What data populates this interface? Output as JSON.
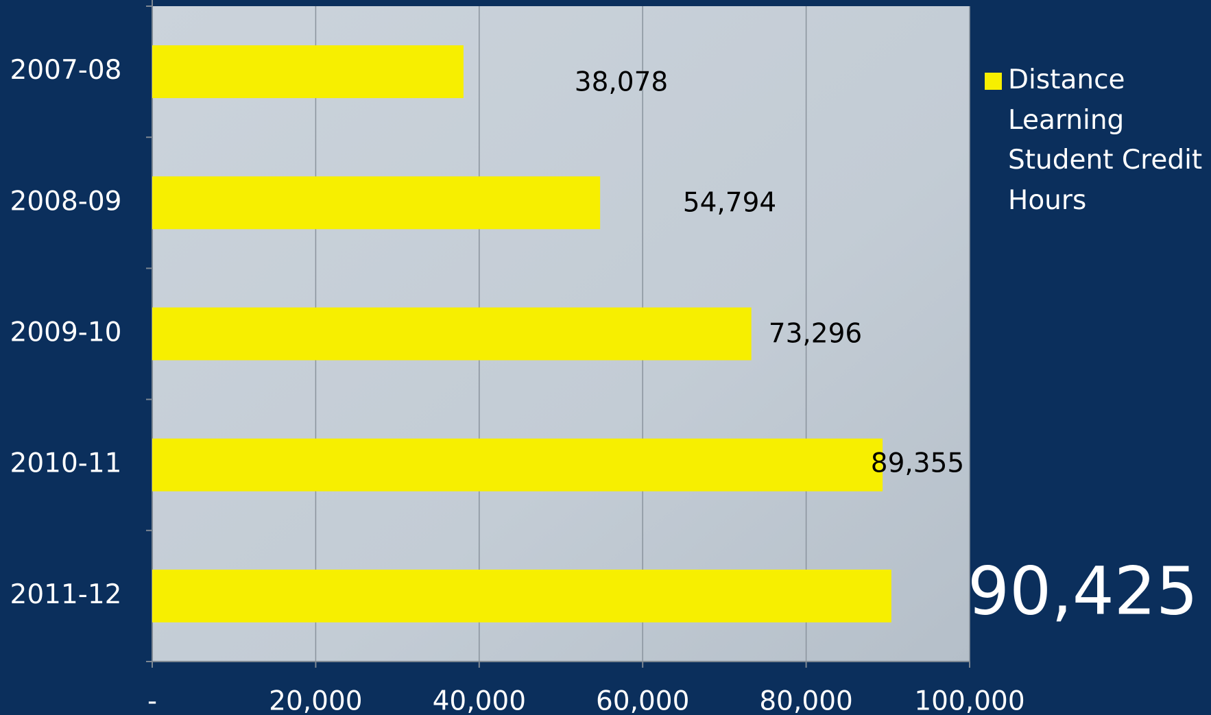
{
  "chart_data": {
    "type": "bar",
    "orientation": "horizontal",
    "categories": [
      "2007-08",
      "2008-09",
      "2009-10",
      "2010-11",
      "2011-12"
    ],
    "series": [
      {
        "name": "Distance Learning Student Credit Hours",
        "color": "#f7ef00",
        "values": [
          38078,
          54794,
          73296,
          89355,
          90425
        ],
        "value_labels": [
          "38,078",
          "54,794",
          "73,296",
          "89,355",
          "90,425"
        ]
      }
    ],
    "xlim": [
      0,
      100000
    ],
    "xticks": [
      {
        "value": 0,
        "label": "-"
      },
      {
        "value": 20000,
        "label": "20,000"
      },
      {
        "value": 40000,
        "label": "40,000"
      },
      {
        "value": 60000,
        "label": "60,000"
      },
      {
        "value": 80000,
        "label": "80,000"
      },
      {
        "value": 100000,
        "label": "100,000"
      }
    ],
    "grid": true,
    "legend": "right"
  }
}
